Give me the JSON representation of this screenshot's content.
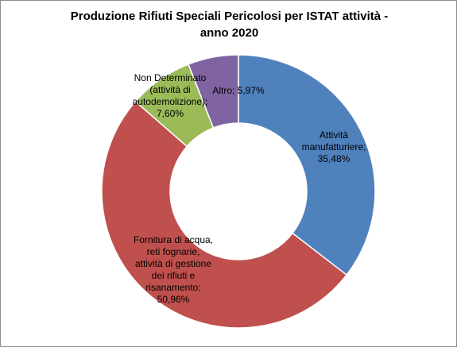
{
  "chart_data": {
    "type": "pie",
    "variant": "doughnut",
    "title_line1": "Produzione Rifiuti Speciali Pericolosi per ISTAT attività -",
    "title_line2": "anno 2020",
    "slices": [
      {
        "label_lines": [
          "Attività",
          "manufatturiere;",
          "35,48%"
        ],
        "value": 35.48,
        "color": "#4f81bd"
      },
      {
        "label_lines": [
          "Fornitura di acqua,",
          "reti fognarie,",
          "attività di gestione",
          "dei rifiuti e",
          "risanamento;",
          "50,96%"
        ],
        "value": 50.96,
        "color": "#c0504d"
      },
      {
        "label_lines": [
          "Non Determinato",
          "(attività di",
          "autodemolizione);",
          "7,60%"
        ],
        "value": 7.6,
        "color": "#9bbb59"
      },
      {
        "label_lines": [
          "Altro; 5,97%"
        ],
        "value": 5.97,
        "color": "#8064a2"
      }
    ],
    "legend": "none"
  }
}
